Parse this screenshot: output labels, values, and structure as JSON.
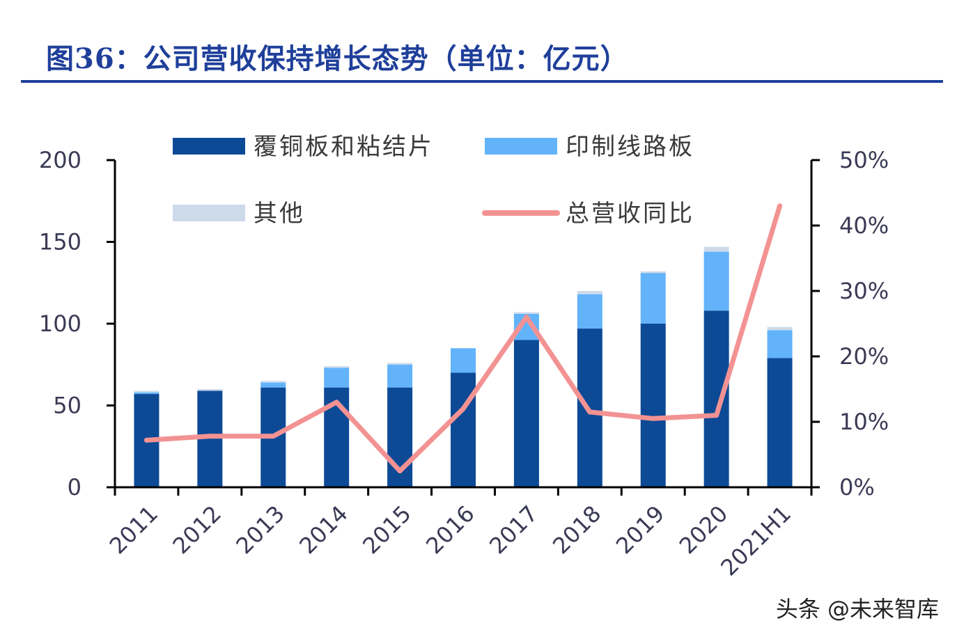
{
  "title": "图36：公司营收保持增长态势（单位：亿元）",
  "watermark": "头条 @未来智库",
  "colors": {
    "ccl": "#0d4a96",
    "pcb": "#62b3fa",
    "other": "#ccdaea",
    "yoy": "#f39292",
    "title": "#1f3f9a"
  },
  "chart_data": {
    "type": "bar",
    "stacked": true,
    "categories": [
      "2011",
      "2012",
      "2013",
      "2014",
      "2015",
      "2016",
      "2017",
      "2018",
      "2019",
      "2020",
      "2021H1"
    ],
    "series": [
      {
        "name": "覆铜板和粘结片",
        "axis": "left",
        "values": [
          57,
          59,
          61,
          61,
          61,
          70,
          90,
          97,
          100,
          108,
          79
        ]
      },
      {
        "name": "印制线路板",
        "axis": "left",
        "values": [
          1,
          0,
          3,
          12,
          14,
          15,
          16,
          21,
          31,
          36,
          17
        ]
      },
      {
        "name": "其他",
        "axis": "left",
        "values": [
          1,
          1,
          1,
          1,
          1,
          0,
          1,
          2,
          1,
          3,
          2
        ]
      },
      {
        "name": "总营收同比",
        "type": "line",
        "axis": "right",
        "values": [
          7.2,
          7.8,
          7.8,
          13.0,
          2.5,
          12.0,
          26.0,
          11.5,
          10.5,
          11.0,
          43.0
        ]
      }
    ],
    "y_left": {
      "min": 0,
      "max": 200,
      "ticks": [
        "0",
        "50",
        "100",
        "150",
        "200"
      ]
    },
    "y_right": {
      "min": 0,
      "max": 50,
      "unit": "%",
      "ticks": [
        "0%",
        "10%",
        "20%",
        "30%",
        "40%",
        "50%"
      ]
    },
    "legend": {
      "placement": "top",
      "items": [
        "覆铜板和粘结片",
        "印制线路板",
        "其他",
        "总营收同比"
      ]
    },
    "grid": false
  }
}
